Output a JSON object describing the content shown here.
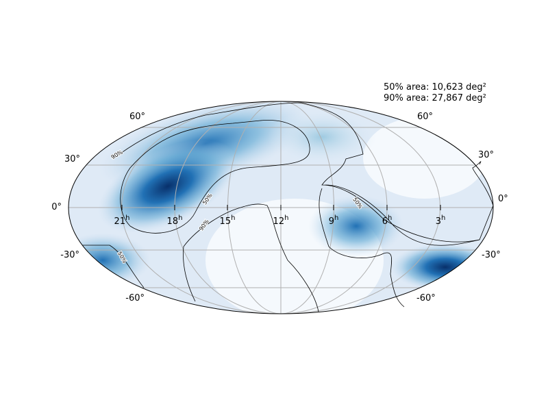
{
  "annotations": [
    "50% area: 10,623 deg²",
    "90% area: 27,867 deg²"
  ],
  "ra_ticks": [
    {
      "number": "21",
      "unit": "h"
    },
    {
      "number": "18",
      "unit": "h"
    },
    {
      "number": "15",
      "unit": "h"
    },
    {
      "number": "12",
      "unit": "h"
    },
    {
      "number": "9",
      "unit": "h"
    },
    {
      "number": "6",
      "unit": "h"
    },
    {
      "number": "3",
      "unit": "h"
    }
  ],
  "dec_ticks_left": [
    "60°",
    "30°",
    "0°",
    "-30°",
    "-60°"
  ],
  "dec_ticks_right": [
    "60°",
    "30°",
    "0°",
    "-30°",
    "-60°"
  ],
  "contour_labels": [
    "90%",
    "50%",
    "90%",
    "50%",
    "50%"
  ]
}
